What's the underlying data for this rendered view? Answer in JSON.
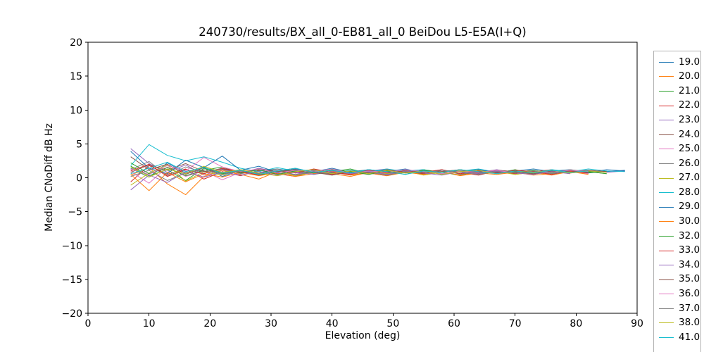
{
  "chart_data": {
    "type": "line",
    "title": "240730/results/BX_all_0-EB81_all_0 BeiDou L5-E5A(I+Q)",
    "xlabel": "Elevation (deg)",
    "ylabel": "Median CNoDiff dB Hz",
    "xlim": [
      0,
      90
    ],
    "ylim": [
      -20,
      20
    ],
    "xtick_values": [
      0,
      10,
      20,
      30,
      40,
      50,
      60,
      70,
      80,
      90
    ],
    "xtick_labels": [
      "0",
      "10",
      "20",
      "30",
      "40",
      "50",
      "60",
      "70",
      "80",
      "90"
    ],
    "ytick_values": [
      -20,
      -15,
      -10,
      -5,
      0,
      5,
      10,
      15,
      20
    ],
    "ytick_labels": [
      "−20",
      "−15",
      "−10",
      "−5",
      "0",
      "5",
      "10",
      "15",
      "20"
    ],
    "grid": false,
    "legend_position": "right-outside",
    "line_width": 1,
    "axis_color": "#000000",
    "legend_border_color": "#b3b3b3",
    "x": [
      7,
      10,
      13,
      16,
      19,
      22,
      25,
      28,
      31,
      34,
      37,
      40,
      43,
      46,
      49,
      52,
      55,
      58,
      61,
      64,
      67,
      70,
      73,
      76,
      79,
      82,
      85,
      88
    ],
    "series": [
      {
        "name": "19.0",
        "color": "#1f77b4",
        "y": [
          1.4,
          0.1,
          2.2,
          0.7,
          1.6,
          0.2,
          1.1,
          0.7,
          1.3,
          0.9,
          0.6,
          1.2,
          0.8,
          1.2,
          0.7,
          1.0,
          1.2,
          0.6,
          0.9,
          1.1,
          0.8,
          1.1,
          0.6,
          1.0,
          1.2,
          0.8,
          0.9,
          1.1
        ]
      },
      {
        "name": "20.0",
        "color": "#ff7f0e",
        "y": [
          0.4,
          1.5,
          -0.9,
          -2.5,
          0.2,
          1.1,
          0.5,
          -0.2,
          0.9,
          0.4,
          1.0,
          0.6,
          0.2,
          0.8,
          0.4,
          1.1,
          0.6,
          0.9,
          0.3,
          0.7,
          1.0,
          0.5,
          0.8,
          0.4,
          0.9,
          0.6
        ]
      },
      {
        "name": "21.0",
        "color": "#2ca02c",
        "y": [
          1.7,
          0.3,
          1.2,
          -0.4,
          1.4,
          0.6,
          1.0,
          0.4,
          0.8,
          1.2,
          0.5,
          0.9,
          1.3,
          0.6,
          1.0,
          0.5,
          1.2,
          0.8,
          0.4,
          1.0,
          0.7,
          1.2,
          0.6,
          0.9,
          1.1,
          0.7,
          1.0
        ]
      },
      {
        "name": "22.0",
        "color": "#d62728",
        "y": [
          -0.6,
          1.8,
          0.5,
          1.3,
          -0.2,
          0.9,
          0.3,
          1.1,
          0.6,
          0.2,
          0.9,
          0.5,
          1.1,
          0.7,
          0.3,
          0.9,
          0.6,
          1.1,
          0.8,
          0.4,
          1.0,
          0.6,
          0.9,
          1.2,
          0.7,
          0.9
        ]
      },
      {
        "name": "23.0",
        "color": "#9467bd",
        "y": [
          4.3,
          2.1,
          0.8,
          1.9,
          0.4,
          1.2,
          0.7,
          1.4,
          0.9,
          0.5,
          1.1,
          0.8,
          0.4,
          1.0,
          1.3,
          0.7,
          1.0,
          0.5,
          1.1,
          0.8,
          1.2,
          0.7,
          1.0,
          0.6,
          0.9,
          1.1,
          0.8,
          1.0
        ]
      },
      {
        "name": "24.0",
        "color": "#8c564b",
        "y": [
          3.1,
          1.2,
          2.0,
          0.5,
          1.5,
          0.8,
          1.2,
          0.6,
          1.0,
          1.4,
          0.7,
          1.1,
          0.6,
          1.2,
          0.8,
          1.1,
          0.5,
          0.9,
          1.2,
          0.8,
          1.1,
          0.9,
          0.5,
          1.0,
          0.8
        ]
      },
      {
        "name": "25.0",
        "color": "#e377c2",
        "y": [
          0.9,
          -0.8,
          1.6,
          0.2,
          1.0,
          -0.3,
          0.8,
          1.2,
          0.4,
          0.9,
          0.6,
          1.2,
          0.8,
          0.5,
          1.1,
          0.7,
          1.0,
          0.6,
          0.9,
          1.2,
          0.6,
          0.8,
          1.1,
          0.7,
          1.0,
          0.6
        ]
      },
      {
        "name": "26.0",
        "color": "#7f7f7f",
        "y": [
          1.2,
          2.4,
          0.3,
          1.6,
          0.8,
          1.4,
          0.6,
          1.0,
          1.3,
          0.7,
          1.0,
          0.4,
          0.9,
          1.2,
          0.6,
          1.0,
          0.8,
          1.2,
          0.5,
          0.9,
          1.1,
          0.7,
          1.0,
          0.8,
          1.2,
          0.9,
          0.6
        ]
      },
      {
        "name": "27.0",
        "color": "#bcbd22",
        "y": [
          -1.1,
          0.7,
          1.9,
          -0.5,
          0.9,
          0.4,
          1.1,
          0.5,
          0.9,
          0.3,
          0.8,
          1.1,
          0.5,
          0.9,
          0.6,
          1.0,
          0.4,
          0.8,
          1.1,
          0.6,
          0.9,
          0.5,
          0.8,
          1.0,
          0.6
        ]
      },
      {
        "name": "28.0",
        "color": "#17becf",
        "y": [
          1.8,
          4.9,
          3.3,
          2.5,
          3.1,
          2.3,
          1.4,
          0.9,
          1.5,
          1.0,
          1.2,
          0.7,
          1.1,
          0.8,
          1.3,
          0.9,
          1.2,
          0.6,
          1.0,
          1.3,
          0.8,
          1.1,
          0.7,
          1.2,
          0.9,
          1.3,
          1.0,
          0.9
        ]
      },
      {
        "name": "29.0",
        "color": "#1f77b4",
        "y": [
          3.9,
          1.4,
          0.6,
          2.6,
          1.5,
          3.2,
          1.1,
          1.7,
          0.8,
          1.3,
          0.9,
          1.4,
          0.8,
          1.2,
          0.9,
          1.3,
          0.7,
          1.1,
          0.9,
          1.2,
          0.8,
          1.0,
          1.3,
          0.9,
          1.1,
          0.8,
          1.2,
          1.0
        ]
      },
      {
        "name": "30.0",
        "color": "#ff7f0e",
        "y": [
          0.5,
          -1.9,
          0.8,
          -0.6,
          0.6,
          0.1,
          0.8,
          0.3,
          0.7,
          0.2,
          0.6,
          0.9,
          0.4,
          0.7,
          0.3,
          0.8,
          0.5,
          0.9,
          0.4,
          0.7,
          0.5,
          0.8,
          0.4,
          0.6,
          0.9,
          0.5
        ]
      },
      {
        "name": "32.0",
        "color": "#2ca02c",
        "y": [
          2.2,
          0.6,
          1.5,
          0.3,
          1.1,
          1.6,
          0.7,
          1.2,
          0.5,
          1.0,
          0.7,
          1.2,
          0.9,
          0.5,
          1.0,
          0.7,
          1.1,
          0.8,
          1.2,
          0.6,
          1.0,
          0.8,
          1.1,
          0.7,
          1.0,
          0.9,
          0.6
        ]
      },
      {
        "name": "33.0",
        "color": "#d62728",
        "y": [
          1.0,
          2.0,
          0.2,
          1.2,
          0.6,
          1.4,
          0.9,
          0.4,
          1.1,
          0.7,
          1.3,
          0.8,
          0.5,
          1.1,
          0.7,
          1.0,
          0.8,
          1.2,
          0.6,
          1.0,
          0.7,
          1.1,
          0.9,
          0.5,
          1.0,
          0.7
        ]
      },
      {
        "name": "34.0",
        "color": "#9467bd",
        "y": [
          -1.8,
          0.4,
          -0.7,
          0.9,
          0.1,
          0.8,
          0.4,
          0.9,
          0.3,
          0.8,
          0.5,
          1.0,
          0.6,
          0.9,
          0.5,
          1.0,
          0.7,
          0.4,
          0.9,
          0.6,
          1.0,
          0.7,
          0.5,
          0.9,
          0.6
        ]
      },
      {
        "name": "35.0",
        "color": "#8c564b",
        "y": [
          0.8,
          1.9,
          1.1,
          2.1,
          0.9,
          1.3,
          0.8,
          1.3,
          0.9,
          1.2,
          0.8,
          0.4,
          1.0,
          0.7,
          1.2,
          0.8,
          1.0,
          0.9,
          1.2,
          0.7,
          1.1,
          0.9,
          0.6,
          1.0,
          0.8,
          1.1,
          0.9
        ]
      },
      {
        "name": "36.0",
        "color": "#e377c2",
        "y": [
          1.3,
          0.5,
          1.8,
          1.0,
          3.0,
          1.6,
          0.9,
          1.3,
          0.7,
          1.1,
          0.9,
          1.3,
          0.7,
          1.0,
          0.8,
          1.2,
          0.9,
          0.6,
          1.0,
          0.8,
          1.1,
          0.7,
          1.0,
          0.8,
          1.1,
          0.9
        ]
      },
      {
        "name": "37.0",
        "color": "#7f7f7f",
        "y": [
          0.2,
          1.1,
          -0.4,
          0.7,
          1.2,
          0.5,
          1.0,
          0.6,
          1.1,
          0.4,
          0.9,
          0.6,
          1.0,
          0.8,
          0.4,
          0.9,
          0.7,
          1.1,
          0.8,
          0.5,
          0.9,
          0.7,
          1.0,
          0.6,
          0.9
        ]
      },
      {
        "name": "38.0",
        "color": "#bcbd22",
        "y": [
          1.6,
          0.1,
          1.3,
          0.6,
          1.7,
          0.8,
          1.2,
          0.7,
          0.3,
          0.9,
          1.2,
          0.6,
          1.0,
          0.6,
          1.1,
          0.7,
          1.0,
          0.5,
          0.9,
          1.1,
          0.6,
          1.0,
          0.8,
          1.1,
          0.7,
          1.0,
          0.8
        ]
      },
      {
        "name": "41.0",
        "color": "#17becf",
        "y": [
          0.6,
          1.4,
          2.3,
          0.9,
          1.5,
          0.7,
          1.1,
          0.5,
          1.0,
          1.4,
          0.8,
          1.1,
          0.7,
          1.2,
          0.9,
          0.5,
          1.0,
          0.8,
          1.2,
          0.9,
          0.6,
          1.0,
          0.7,
          1.1,
          0.8,
          1.0
        ]
      }
    ]
  }
}
